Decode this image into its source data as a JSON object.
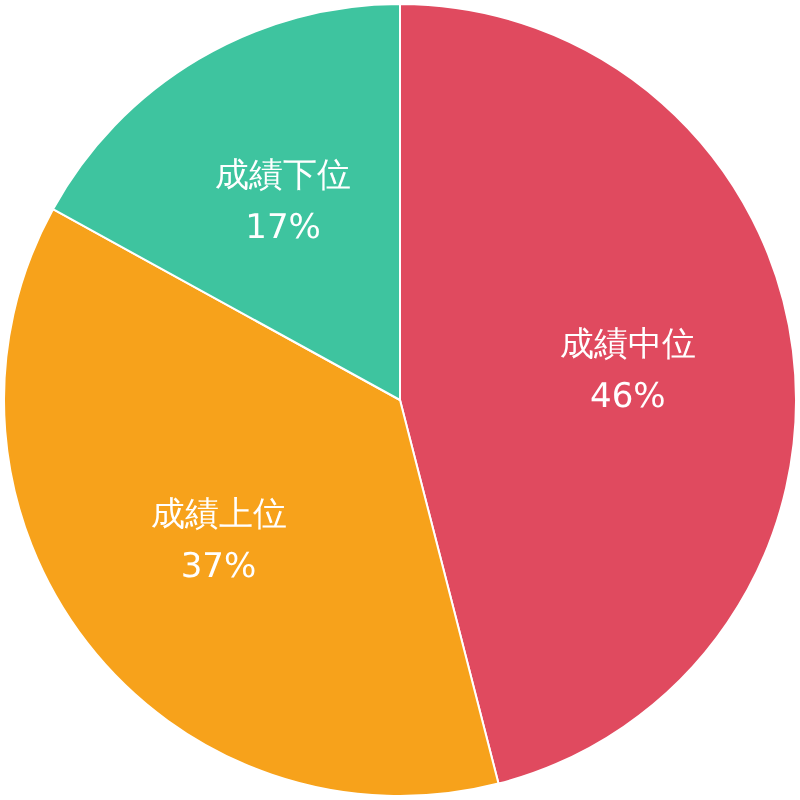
{
  "chart_data": {
    "type": "pie",
    "categories": [
      "成績中位",
      "成績上位",
      "成績下位"
    ],
    "values": [
      46,
      37,
      17
    ],
    "colors": [
      "#e04a5f",
      "#f7a21b",
      "#3ec49f"
    ],
    "value_labels": [
      "46%",
      "37%",
      "17%"
    ]
  }
}
